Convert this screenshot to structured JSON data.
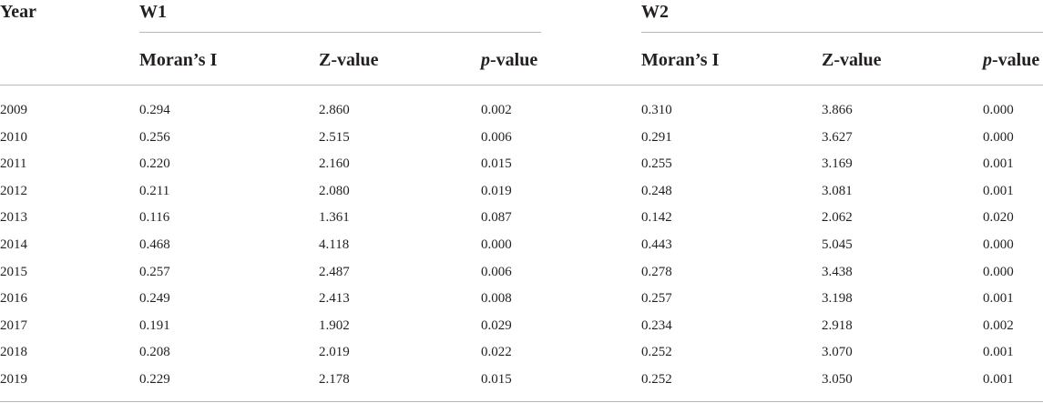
{
  "table": {
    "year_header": "Year",
    "groups": [
      {
        "label": "W1",
        "columns": [
          {
            "main": "Moran’s I",
            "italic": "",
            "suffix": ""
          },
          {
            "main": "Z-value",
            "italic": "",
            "suffix": ""
          },
          {
            "main": "",
            "italic": "p",
            "suffix": "-value"
          }
        ]
      },
      {
        "label": "W2",
        "columns": [
          {
            "main": "Moran’s I",
            "italic": "",
            "suffix": ""
          },
          {
            "main": "Z-value",
            "italic": "",
            "suffix": ""
          },
          {
            "main": "",
            "italic": "p",
            "suffix": "-value"
          }
        ]
      }
    ],
    "rows": [
      [
        "2009",
        "0.294",
        "2.860",
        "0.002",
        "0.310",
        "3.866",
        "0.000"
      ],
      [
        "2010",
        "0.256",
        "2.515",
        "0.006",
        "0.291",
        "3.627",
        "0.000"
      ],
      [
        "2011",
        "0.220",
        "2.160",
        "0.015",
        "0.255",
        "3.169",
        "0.001"
      ],
      [
        "2012",
        "0.211",
        "2.080",
        "0.019",
        "0.248",
        "3.081",
        "0.001"
      ],
      [
        "2013",
        "0.116",
        "1.361",
        "0.087",
        "0.142",
        "2.062",
        "0.020"
      ],
      [
        "2014",
        "0.468",
        "4.118",
        "0.000",
        "0.443",
        "5.045",
        "0.000"
      ],
      [
        "2015",
        "0.257",
        "2.487",
        "0.006",
        "0.278",
        "3.438",
        "0.000"
      ],
      [
        "2016",
        "0.249",
        "2.413",
        "0.008",
        "0.257",
        "3.198",
        "0.001"
      ],
      [
        "2017",
        "0.191",
        "1.902",
        "0.029",
        "0.234",
        "2.918",
        "0.002"
      ],
      [
        "2018",
        "0.208",
        "2.019",
        "0.022",
        "0.252",
        "3.070",
        "0.001"
      ],
      [
        "2019",
        "0.229",
        "2.178",
        "0.015",
        "0.252",
        "3.050",
        "0.001"
      ]
    ]
  }
}
